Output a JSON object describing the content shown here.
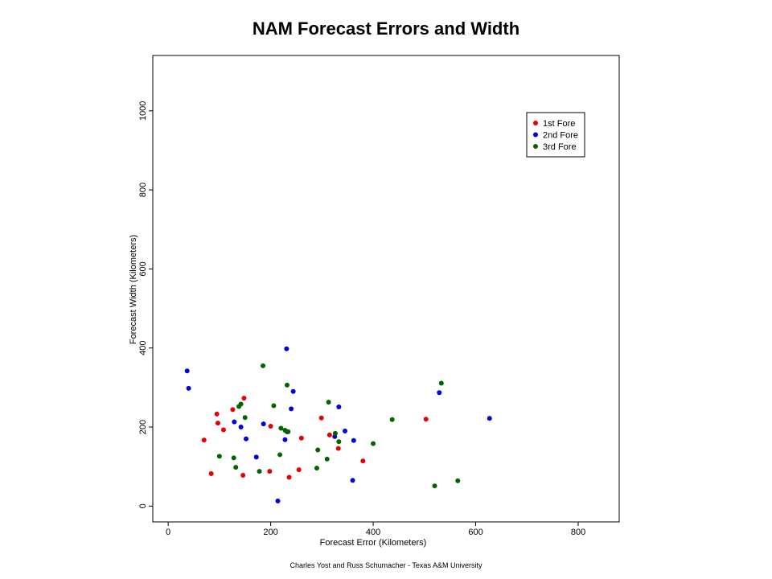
{
  "chart_data": {
    "type": "scatter",
    "title": "NAM Forecast Errors and Width",
    "xlabel": "Forecast Error (Kilometers)",
    "ylabel": "Forecast Width (Kilometers)",
    "xlim": [
      -30,
      880
    ],
    "ylim": [
      -40,
      1140
    ],
    "xticks": [
      0,
      200,
      400,
      600,
      800
    ],
    "yticks": [
      0,
      200,
      400,
      600,
      800,
      1000
    ],
    "grid": false,
    "legend_position": "top-right",
    "footer": "Charles Yost and Russ Schumacher - Texas A&M University",
    "series": [
      {
        "name": "1st Fore",
        "color": "#e60000",
        "points": [
          [
            70,
            167
          ],
          [
            84,
            82
          ],
          [
            95,
            233
          ],
          [
            97,
            210
          ],
          [
            108,
            193
          ],
          [
            126,
            244
          ],
          [
            148,
            273
          ],
          [
            146,
            78
          ],
          [
            198,
            88
          ],
          [
            200,
            202
          ],
          [
            236,
            73
          ],
          [
            255,
            92
          ],
          [
            260,
            172
          ],
          [
            299,
            223
          ],
          [
            315,
            180
          ],
          [
            332,
            146
          ],
          [
            380,
            114
          ],
          [
            503,
            220
          ]
        ]
      },
      {
        "name": "2nd Fore",
        "color": "#0000dd",
        "points": [
          [
            37,
            342
          ],
          [
            40,
            298
          ],
          [
            129,
            213
          ],
          [
            142,
            200
          ],
          [
            152,
            170
          ],
          [
            172,
            124
          ],
          [
            186,
            208
          ],
          [
            214,
            13
          ],
          [
            228,
            168
          ],
          [
            231,
            398
          ],
          [
            232,
            188
          ],
          [
            240,
            246
          ],
          [
            244,
            290
          ],
          [
            325,
            176
          ],
          [
            333,
            251
          ],
          [
            345,
            190
          ],
          [
            360,
            65
          ],
          [
            362,
            166
          ],
          [
            529,
            287
          ],
          [
            627,
            222
          ]
        ]
      },
      {
        "name": "3rd Fore",
        "color": "#006400",
        "points": [
          [
            100,
            126
          ],
          [
            128,
            122
          ],
          [
            132,
            98
          ],
          [
            138,
            252
          ],
          [
            142,
            258
          ],
          [
            150,
            224
          ],
          [
            178,
            88
          ],
          [
            185,
            355
          ],
          [
            206,
            254
          ],
          [
            218,
            130
          ],
          [
            220,
            197
          ],
          [
            228,
            192
          ],
          [
            232,
            306
          ],
          [
            234,
            188
          ],
          [
            290,
            96
          ],
          [
            292,
            142
          ],
          [
            310,
            119
          ],
          [
            313,
            263
          ],
          [
            326,
            184
          ],
          [
            333,
            163
          ],
          [
            400,
            158
          ],
          [
            437,
            219
          ],
          [
            520,
            51
          ],
          [
            533,
            311
          ],
          [
            565,
            64
          ]
        ]
      }
    ]
  }
}
